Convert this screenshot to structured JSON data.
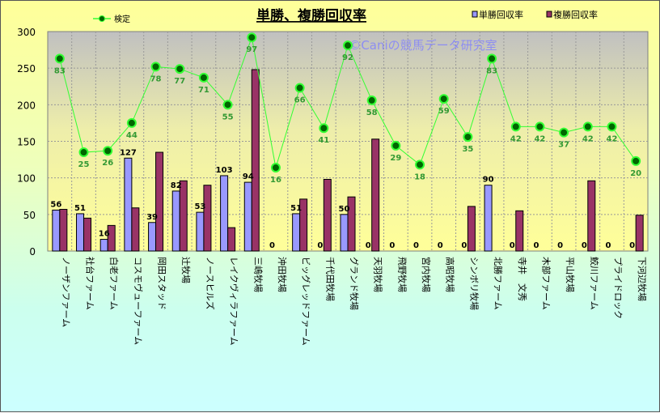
{
  "chart_data": {
    "type": "bar",
    "title": "単勝、複勝回収率",
    "watermark": "©Caniの競馬データ研究室",
    "ylim": [
      0,
      300
    ],
    "yticks": [
      0,
      50,
      100,
      150,
      200,
      250,
      300
    ],
    "grid": true,
    "legend_placement": "top",
    "categories": [
      "ノーザンファーム",
      "社台ファーム",
      "白老ファーム",
      "コスモヴューファーム",
      "岡田スタッド",
      "辻牧場",
      "ノースヒルズ",
      "レイクヴィラファーム",
      "三嶋牧場",
      "沖田牧場",
      "ビッグレッドファーム",
      "千代田牧場",
      "グランド牧場",
      "天羽牧場",
      "飛野牧場",
      "宮内牧場",
      "高昭牧場",
      "シンボリ牧場",
      "北勝ファーム",
      "寺井　文秀",
      "木部ファーム",
      "平山牧場",
      "鮫川ファーム",
      "プライドロック",
      "下河辺牧場"
    ],
    "series": [
      {
        "name": "単勝回収率",
        "type": "bar",
        "color": "#9999ff",
        "values": [
          56,
          51,
          16,
          127,
          39,
          82,
          53,
          103,
          94,
          0,
          51,
          0,
          50,
          0,
          0,
          0,
          0,
          0,
          90,
          0,
          0,
          0,
          0,
          0,
          0
        ]
      },
      {
        "name": "複勝回収率",
        "type": "bar",
        "color": "#993366",
        "values": [
          57,
          45,
          35,
          59,
          135,
          96,
          90,
          32,
          248,
          0,
          71,
          98,
          74,
          153,
          0,
          0,
          0,
          61,
          0,
          55,
          0,
          0,
          96,
          0,
          49
        ]
      },
      {
        "name": "検定",
        "type": "line",
        "color": "#33ff33",
        "values": [
          263,
          135,
          137,
          175,
          252,
          249,
          237,
          200,
          292,
          114,
          223,
          168,
          281,
          206,
          144,
          118,
          208,
          156,
          263,
          170,
          170,
          162,
          170,
          170,
          123
        ],
        "labels": [
          83,
          25,
          26,
          44,
          78,
          77,
          71,
          55,
          97,
          16,
          66,
          41,
          92,
          58,
          29,
          18,
          59,
          35,
          83,
          42,
          42,
          37,
          42,
          42,
          20
        ]
      }
    ]
  }
}
